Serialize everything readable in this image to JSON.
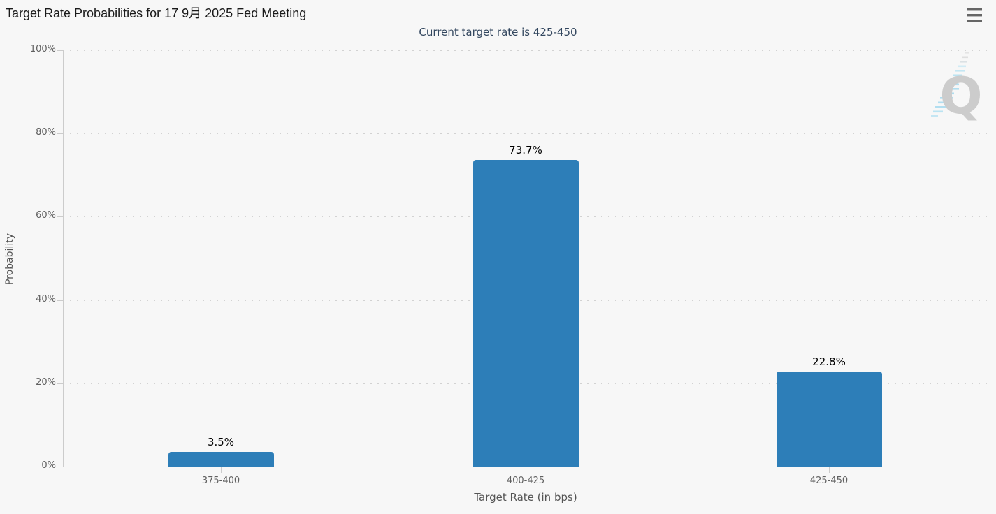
{
  "header": {
    "icons": {
      "menu": "hamburger-menu-icon",
      "watermark": "quikstrike-q-logo"
    }
  },
  "chart_data": {
    "type": "bar",
    "title": "Target Rate Probabilities for 17 9月 2025 Fed Meeting",
    "subtitle": "Current target rate is 425-450",
    "categories": [
      "375-400",
      "400-425",
      "425-450"
    ],
    "values": [
      3.5,
      73.7,
      22.8
    ],
    "value_labels": [
      "3.5%",
      "73.7%",
      "22.8%"
    ],
    "xlabel": "Target Rate (in bps)",
    "ylabel": "Probability",
    "ylim": [
      0,
      100
    ],
    "yticks": [
      0,
      20,
      40,
      60,
      80,
      100
    ],
    "ytick_labels": [
      "0%",
      "20%",
      "40%",
      "60%",
      "80%",
      "100%"
    ],
    "grid": true,
    "legend": "none",
    "bar_color": "#2d7eb8",
    "watermark_letter": "Q"
  }
}
